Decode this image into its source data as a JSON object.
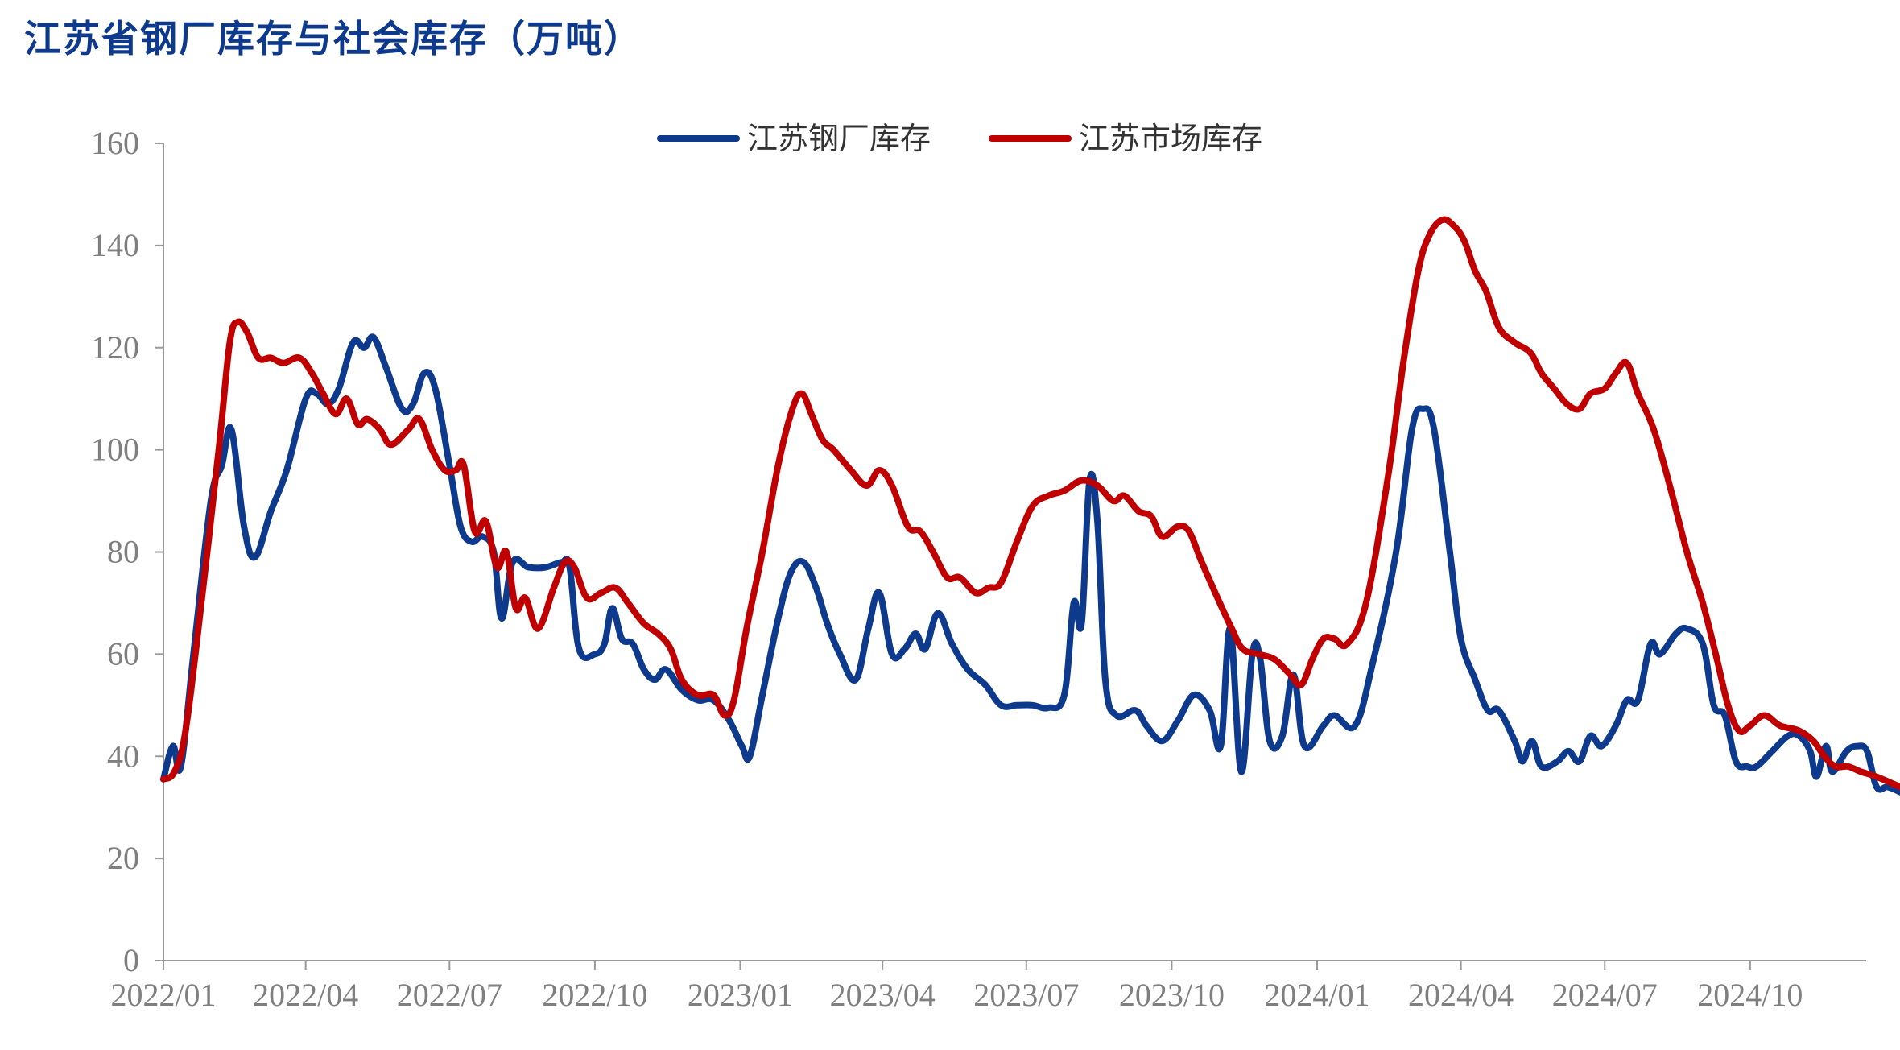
{
  "title": "江苏省钢厂库存与社会库存（万吨）",
  "chart_data": {
    "type": "line",
    "title": "江苏省钢厂库存与社会库存（万吨）",
    "xlabel": "",
    "ylabel": "",
    "ylim": [
      0,
      160
    ],
    "yticks": [
      0,
      20,
      40,
      60,
      80,
      100,
      120,
      140,
      160
    ],
    "xticks": [
      "2022/01",
      "2022/04",
      "2022/07",
      "2022/10",
      "2023/01",
      "2023/04",
      "2023/07",
      "2023/10",
      "2024/01",
      "2024/04",
      "2024/07",
      "2024/10"
    ],
    "grid": false,
    "legend_position": "top-center",
    "series": [
      {
        "name": "江苏钢厂库存",
        "color": "#0d3a8c",
        "points": [
          [
            "2022-01-01",
            35.5
          ],
          [
            "2022-01-07",
            42
          ],
          [
            "2022-01-12",
            38
          ],
          [
            "2022-01-20",
            60
          ],
          [
            "2022-01-31",
            90
          ],
          [
            "2022-02-07",
            97
          ],
          [
            "2022-02-13",
            104
          ],
          [
            "2022-02-21",
            85
          ],
          [
            "2022-02-28",
            79
          ],
          [
            "2022-03-10",
            88
          ],
          [
            "2022-03-20",
            96
          ],
          [
            "2022-04-01",
            110
          ],
          [
            "2022-04-08",
            111
          ],
          [
            "2022-04-15",
            109
          ],
          [
            "2022-04-22",
            112
          ],
          [
            "2022-05-01",
            121
          ],
          [
            "2022-05-08",
            120
          ],
          [
            "2022-05-14",
            122
          ],
          [
            "2022-05-22",
            116
          ],
          [
            "2022-06-01",
            108
          ],
          [
            "2022-06-08",
            109
          ],
          [
            "2022-06-15",
            115
          ],
          [
            "2022-06-22",
            112
          ],
          [
            "2022-07-01",
            97
          ],
          [
            "2022-07-08",
            85
          ],
          [
            "2022-07-15",
            82
          ],
          [
            "2022-07-22",
            83
          ],
          [
            "2022-07-29",
            80
          ],
          [
            "2022-08-03",
            67
          ],
          [
            "2022-08-10",
            78
          ],
          [
            "2022-08-20",
            77
          ],
          [
            "2022-08-31",
            77
          ],
          [
            "2022-09-10",
            78
          ],
          [
            "2022-09-15",
            77
          ],
          [
            "2022-09-21",
            61
          ],
          [
            "2022-10-01",
            60
          ],
          [
            "2022-10-07",
            62
          ],
          [
            "2022-10-12",
            69
          ],
          [
            "2022-10-18",
            63
          ],
          [
            "2022-10-25",
            62
          ],
          [
            "2022-11-01",
            57
          ],
          [
            "2022-11-08",
            55
          ],
          [
            "2022-11-15",
            57
          ],
          [
            "2022-11-25",
            53
          ],
          [
            "2022-12-05",
            51
          ],
          [
            "2022-12-15",
            51
          ],
          [
            "2022-12-25",
            47
          ],
          [
            "2023-01-02",
            42
          ],
          [
            "2023-01-07",
            40
          ],
          [
            "2023-01-15",
            52
          ],
          [
            "2023-01-25",
            67
          ],
          [
            "2023-02-02",
            76
          ],
          [
            "2023-02-10",
            78
          ],
          [
            "2023-02-18",
            73
          ],
          [
            "2023-02-25",
            66
          ],
          [
            "2023-03-05",
            60
          ],
          [
            "2023-03-15",
            55
          ],
          [
            "2023-03-23",
            65
          ],
          [
            "2023-03-30",
            72
          ],
          [
            "2023-04-07",
            60
          ],
          [
            "2023-04-15",
            61
          ],
          [
            "2023-04-22",
            64
          ],
          [
            "2023-04-28",
            61
          ],
          [
            "2023-05-06",
            68
          ],
          [
            "2023-05-15",
            62
          ],
          [
            "2023-05-25",
            57
          ],
          [
            "2023-06-05",
            54
          ],
          [
            "2023-06-15",
            50
          ],
          [
            "2023-06-25",
            50
          ],
          [
            "2023-07-05",
            50
          ],
          [
            "2023-07-15",
            49.5
          ],
          [
            "2023-07-25",
            52
          ],
          [
            "2023-07-31",
            70
          ],
          [
            "2023-08-05",
            66
          ],
          [
            "2023-08-10",
            94
          ],
          [
            "2023-08-15",
            86
          ],
          [
            "2023-08-20",
            55
          ],
          [
            "2023-08-27",
            48
          ],
          [
            "2023-09-08",
            49
          ],
          [
            "2023-09-15",
            46
          ],
          [
            "2023-09-25",
            43
          ],
          [
            "2023-10-05",
            47
          ],
          [
            "2023-10-15",
            52
          ],
          [
            "2023-10-25",
            49
          ],
          [
            "2023-11-01",
            42
          ],
          [
            "2023-11-07",
            65
          ],
          [
            "2023-11-14",
            37
          ],
          [
            "2023-11-21",
            60
          ],
          [
            "2023-11-26",
            59
          ],
          [
            "2023-12-02",
            43
          ],
          [
            "2023-12-10",
            44
          ],
          [
            "2023-12-17",
            56
          ],
          [
            "2023-12-24",
            42
          ],
          [
            "2024-01-05",
            46
          ],
          [
            "2024-01-12",
            48
          ],
          [
            "2024-01-25",
            46
          ],
          [
            "2024-02-05",
            58
          ],
          [
            "2024-02-20",
            80
          ],
          [
            "2024-03-01",
            104
          ],
          [
            "2024-03-08",
            108
          ],
          [
            "2024-03-15",
            104
          ],
          [
            "2024-03-25",
            80
          ],
          [
            "2024-04-01",
            63
          ],
          [
            "2024-04-10",
            55
          ],
          [
            "2024-04-18",
            49
          ],
          [
            "2024-04-25",
            49
          ],
          [
            "2024-05-05",
            43
          ],
          [
            "2024-05-10",
            39
          ],
          [
            "2024-05-16",
            43
          ],
          [
            "2024-05-22",
            38
          ],
          [
            "2024-06-01",
            39
          ],
          [
            "2024-06-08",
            41
          ],
          [
            "2024-06-15",
            39
          ],
          [
            "2024-06-22",
            44
          ],
          [
            "2024-06-29",
            42
          ],
          [
            "2024-07-08",
            46
          ],
          [
            "2024-07-15",
            51
          ],
          [
            "2024-07-22",
            51
          ],
          [
            "2024-07-30",
            62
          ],
          [
            "2024-08-05",
            60
          ],
          [
            "2024-08-15",
            64
          ],
          [
            "2024-08-22",
            65
          ],
          [
            "2024-09-01",
            62
          ],
          [
            "2024-09-08",
            50
          ],
          [
            "2024-09-15",
            48
          ],
          [
            "2024-09-22",
            39
          ],
          [
            "2024-09-29",
            38
          ],
          [
            "2024-10-05",
            38
          ],
          [
            "2024-10-15",
            41
          ],
          [
            "2024-10-25",
            44
          ],
          [
            "2024-11-01",
            44
          ],
          [
            "2024-11-08",
            41
          ],
          [
            "2024-11-12",
            36
          ],
          [
            "2024-11-18",
            42
          ],
          [
            "2024-11-22",
            37
          ],
          [
            "2024-12-01",
            41
          ],
          [
            "2024-12-08",
            42
          ],
          [
            "2024-12-14",
            41
          ],
          [
            "2024-12-20",
            34
          ],
          [
            "2024-12-27",
            34
          ],
          [
            "2025-01-04",
            33
          ]
        ]
      },
      {
        "name": "江苏市场库存",
        "color": "#c00000",
        "points": [
          [
            "2022-01-01",
            35.5
          ],
          [
            "2022-01-08",
            37
          ],
          [
            "2022-01-15",
            45
          ],
          [
            "2022-01-25",
            70
          ],
          [
            "2022-02-05",
            100
          ],
          [
            "2022-02-12",
            121
          ],
          [
            "2022-02-17",
            125
          ],
          [
            "2022-02-23",
            123
          ],
          [
            "2022-03-02",
            118
          ],
          [
            "2022-03-10",
            118
          ],
          [
            "2022-03-18",
            117
          ],
          [
            "2022-03-28",
            118
          ],
          [
            "2022-04-05",
            115
          ],
          [
            "2022-04-12",
            111
          ],
          [
            "2022-04-20",
            107
          ],
          [
            "2022-04-27",
            110
          ],
          [
            "2022-05-04",
            105
          ],
          [
            "2022-05-10",
            106
          ],
          [
            "2022-05-18",
            104
          ],
          [
            "2022-05-25",
            101
          ],
          [
            "2022-06-05",
            104
          ],
          [
            "2022-06-12",
            106
          ],
          [
            "2022-06-20",
            100
          ],
          [
            "2022-06-28",
            96
          ],
          [
            "2022-07-05",
            96
          ],
          [
            "2022-07-10",
            97
          ],
          [
            "2022-07-17",
            84
          ],
          [
            "2022-07-24",
            86
          ],
          [
            "2022-07-31",
            77
          ],
          [
            "2022-08-06",
            80
          ],
          [
            "2022-08-12",
            69
          ],
          [
            "2022-08-18",
            71
          ],
          [
            "2022-08-26",
            65
          ],
          [
            "2022-09-05",
            73
          ],
          [
            "2022-09-12",
            78
          ],
          [
            "2022-09-18",
            77
          ],
          [
            "2022-09-26",
            71
          ],
          [
            "2022-10-05",
            72
          ],
          [
            "2022-10-14",
            73
          ],
          [
            "2022-10-22",
            70
          ],
          [
            "2022-11-01",
            66
          ],
          [
            "2022-11-10",
            64
          ],
          [
            "2022-11-18",
            61
          ],
          [
            "2022-11-25",
            55
          ],
          [
            "2022-12-05",
            52
          ],
          [
            "2022-12-15",
            52
          ],
          [
            "2022-12-22",
            48
          ],
          [
            "2022-12-28",
            51
          ],
          [
            "2023-01-05",
            65
          ],
          [
            "2023-01-15",
            80
          ],
          [
            "2023-01-25",
            97
          ],
          [
            "2023-02-03",
            108
          ],
          [
            "2023-02-09",
            111
          ],
          [
            "2023-02-15",
            107
          ],
          [
            "2023-02-22",
            102
          ],
          [
            "2023-03-01",
            100
          ],
          [
            "2023-03-12",
            96
          ],
          [
            "2023-03-22",
            93
          ],
          [
            "2023-03-30",
            96
          ],
          [
            "2023-04-07",
            93
          ],
          [
            "2023-04-17",
            85
          ],
          [
            "2023-04-25",
            84
          ],
          [
            "2023-05-03",
            80
          ],
          [
            "2023-05-12",
            75
          ],
          [
            "2023-05-20",
            75
          ],
          [
            "2023-05-30",
            72
          ],
          [
            "2023-06-07",
            73
          ],
          [
            "2023-06-15",
            74
          ],
          [
            "2023-06-25",
            82
          ],
          [
            "2023-07-05",
            89
          ],
          [
            "2023-07-15",
            91
          ],
          [
            "2023-07-25",
            92
          ],
          [
            "2023-08-05",
            94
          ],
          [
            "2023-08-15",
            93
          ],
          [
            "2023-08-25",
            90
          ],
          [
            "2023-09-01",
            91
          ],
          [
            "2023-09-10",
            88
          ],
          [
            "2023-09-18",
            87
          ],
          [
            "2023-09-25",
            83
          ],
          [
            "2023-10-05",
            85
          ],
          [
            "2023-10-12",
            84
          ],
          [
            "2023-10-20",
            78
          ],
          [
            "2023-10-30",
            71
          ],
          [
            "2023-11-08",
            65
          ],
          [
            "2023-11-15",
            61
          ],
          [
            "2023-11-25",
            60
          ],
          [
            "2023-12-05",
            59
          ],
          [
            "2023-12-15",
            56
          ],
          [
            "2023-12-22",
            54
          ],
          [
            "2023-12-29",
            59
          ],
          [
            "2024-01-05",
            63
          ],
          [
            "2024-01-12",
            63
          ],
          [
            "2024-01-20",
            62
          ],
          [
            "2024-02-01",
            70
          ],
          [
            "2024-02-15",
            95
          ],
          [
            "2024-02-25",
            118
          ],
          [
            "2024-03-05",
            135
          ],
          [
            "2024-03-12",
            142
          ],
          [
            "2024-03-20",
            145
          ],
          [
            "2024-03-27",
            144
          ],
          [
            "2024-04-03",
            141
          ],
          [
            "2024-04-10",
            135
          ],
          [
            "2024-04-17",
            131
          ],
          [
            "2024-04-25",
            124
          ],
          [
            "2024-05-05",
            121
          ],
          [
            "2024-05-15",
            119
          ],
          [
            "2024-05-22",
            115
          ],
          [
            "2024-05-30",
            112
          ],
          [
            "2024-06-07",
            109
          ],
          [
            "2024-06-15",
            108
          ],
          [
            "2024-06-22",
            111
          ],
          [
            "2024-07-01",
            112
          ],
          [
            "2024-07-08",
            115
          ],
          [
            "2024-07-15",
            117
          ],
          [
            "2024-07-22",
            111
          ],
          [
            "2024-08-01",
            104
          ],
          [
            "2024-08-12",
            92
          ],
          [
            "2024-08-22",
            80
          ],
          [
            "2024-09-01",
            70
          ],
          [
            "2024-09-10",
            59
          ],
          [
            "2024-09-17",
            50
          ],
          [
            "2024-09-24",
            45
          ],
          [
            "2024-10-01",
            46
          ],
          [
            "2024-10-10",
            48
          ],
          [
            "2024-10-20",
            46
          ],
          [
            "2024-11-01",
            45
          ],
          [
            "2024-11-10",
            43
          ],
          [
            "2024-11-17",
            40
          ],
          [
            "2024-11-24",
            38
          ],
          [
            "2024-12-02",
            38
          ],
          [
            "2024-12-10",
            37
          ],
          [
            "2024-12-20",
            36
          ],
          [
            "2025-01-04",
            34
          ]
        ]
      }
    ]
  }
}
